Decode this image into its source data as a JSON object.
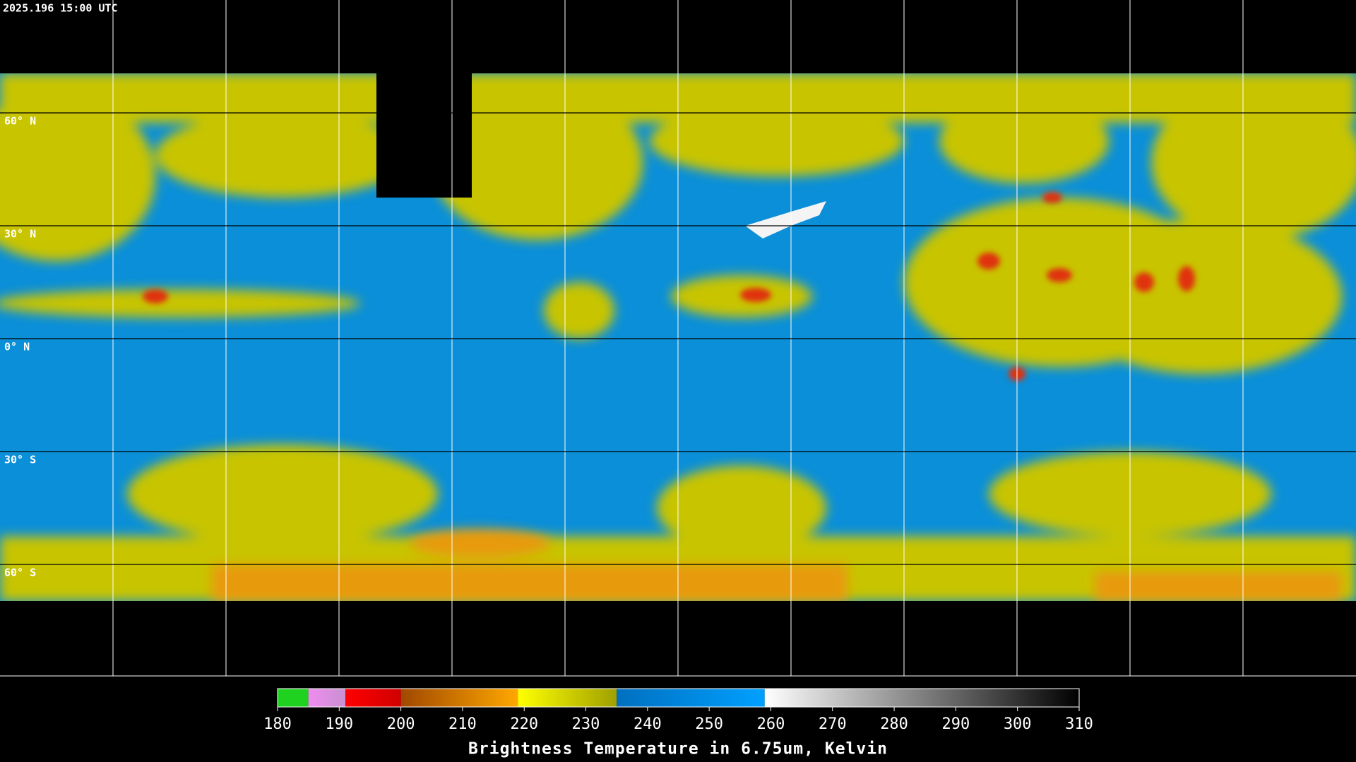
{
  "timestamp": "2025.196 15:00 UTC",
  "lat_lines": [
    {
      "value": 60,
      "label": "60° N"
    },
    {
      "value": 30,
      "label": "30° N"
    },
    {
      "value": 0,
      "label": "0° N"
    },
    {
      "value": -30,
      "label": "30° S"
    },
    {
      "value": -60,
      "label": "60° S"
    }
  ],
  "colorbar": {
    "title": "Brightness Temperature in 6.75um, Kelvin",
    "range": [
      180,
      310
    ],
    "ticks": [
      180,
      190,
      200,
      210,
      220,
      230,
      240,
      250,
      260,
      270,
      280,
      290,
      300,
      310
    ],
    "segments": [
      {
        "from": 180,
        "to": 185,
        "colors": [
          "#1fd21f",
          "#1fd21f"
        ]
      },
      {
        "from": 185,
        "to": 191,
        "colors": [
          "#f08cf0",
          "#c890d0"
        ]
      },
      {
        "from": 191,
        "to": 200,
        "colors": [
          "#ff0000",
          "#d00000"
        ]
      },
      {
        "from": 200,
        "to": 219,
        "colors": [
          "#a04800",
          "#ffa800"
        ]
      },
      {
        "from": 219,
        "to": 235,
        "colors": [
          "#ffff00",
          "#a0a000"
        ]
      },
      {
        "from": 235,
        "to": 259,
        "colors": [
          "#0070c0",
          "#00a0ff"
        ]
      },
      {
        "from": 259,
        "to": 310,
        "colors": [
          "#ffffff",
          "#000000"
        ]
      }
    ]
  }
}
